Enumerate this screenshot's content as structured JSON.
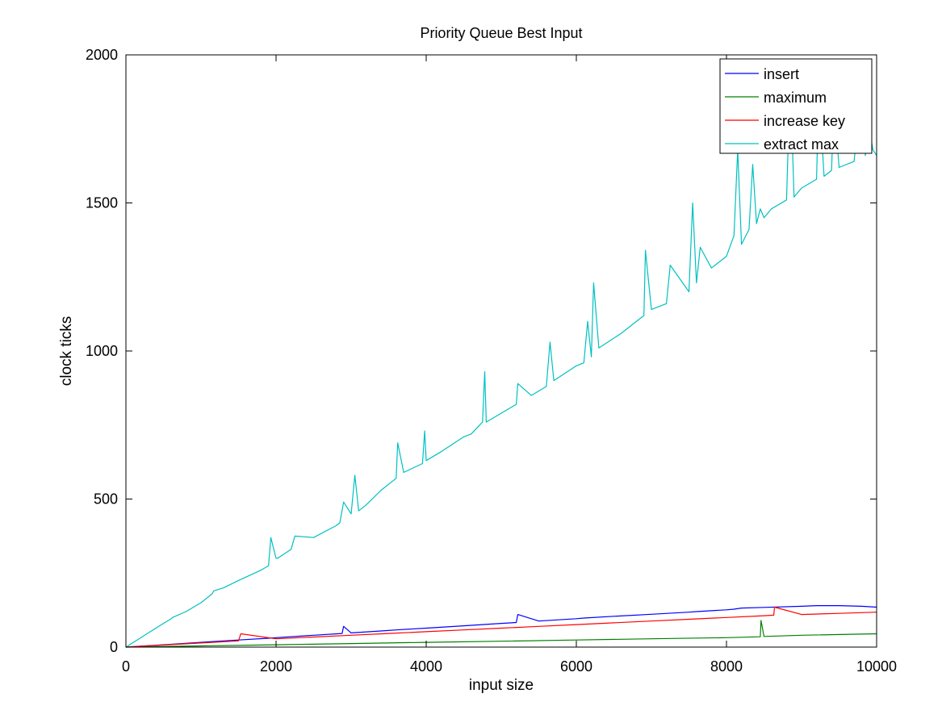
{
  "chart_data": {
    "type": "line",
    "title": "Priority Queue Best Input",
    "xlabel": "input size",
    "ylabel": "clock ticks",
    "xlim": [
      0,
      10000
    ],
    "ylim": [
      0,
      2000
    ],
    "xticks": [
      "0",
      "2000",
      "4000",
      "6000",
      "8000",
      "10000"
    ],
    "yticks": [
      "0",
      "500",
      "1000",
      "1500",
      "2000"
    ],
    "grid": false,
    "legend_position": "top-right",
    "series": [
      {
        "name": "insert",
        "color": "#0000ff",
        "x": [
          0,
          500,
          1000,
          1500,
          1900,
          2000,
          2500,
          2880,
          2900,
          3000,
          3500,
          3600,
          4000,
          4500,
          5000,
          5200,
          5220,
          5500,
          6000,
          6100,
          6500,
          7000,
          7500,
          7600,
          8000,
          8100,
          8200,
          8500,
          9000,
          9200,
          9500,
          9800,
          10000
        ],
        "y": [
          0,
          8,
          16,
          24,
          30,
          32,
          40,
          46,
          70,
          48,
          56,
          58,
          64,
          72,
          80,
          83,
          110,
          88,
          96,
          98,
          104,
          111,
          118,
          120,
          126,
          128,
          132,
          134,
          138,
          140,
          140,
          138,
          135
        ]
      },
      {
        "name": "maximum",
        "color": "#008000",
        "x": [
          0,
          1000,
          2000,
          3000,
          4000,
          5000,
          6000,
          7000,
          8000,
          8450,
          8460,
          8500,
          9000,
          10000
        ],
        "y": [
          0,
          4,
          8,
          12,
          16,
          20,
          24,
          28,
          32,
          35,
          90,
          36,
          40,
          45
        ]
      },
      {
        "name": "increase key",
        "color": "#ff0000",
        "x": [
          0,
          500,
          1000,
          1500,
          1530,
          2000,
          2500,
          3000,
          3500,
          4000,
          4500,
          5000,
          5500,
          6000,
          6500,
          7000,
          7500,
          8000,
          8500,
          8630,
          8640,
          9000,
          9500,
          10000
        ],
        "y": [
          0,
          7,
          14,
          21,
          45,
          28,
          34,
          40,
          46,
          52,
          58,
          64,
          70,
          76,
          82,
          88,
          94,
          100,
          106,
          108,
          135,
          110,
          114,
          118
        ]
      },
      {
        "name": "extract max",
        "color": "#00c0c0",
        "x": [
          0,
          250,
          500,
          600,
          620,
          800,
          900,
          1000,
          1150,
          1170,
          1300,
          1500,
          1800,
          1900,
          1930,
          2000,
          2020,
          2200,
          2250,
          2500,
          2800,
          2850,
          2900,
          3000,
          3050,
          3100,
          3200,
          3400,
          3600,
          3620,
          3700,
          3950,
          3980,
          4000,
          4200,
          4500,
          4600,
          4750,
          4780,
          4800,
          5000,
          5200,
          5220,
          5400,
          5600,
          5650,
          5700,
          6000,
          6100,
          6150,
          6200,
          6230,
          6300,
          6600,
          6900,
          6920,
          7000,
          7200,
          7250,
          7500,
          7550,
          7600,
          7650,
          7800,
          8000,
          8100,
          8150,
          8200,
          8300,
          8350,
          8400,
          8450,
          8500,
          8600,
          8800,
          8850,
          8900,
          9000,
          9200,
          9230,
          9300,
          9400,
          9430,
          9500,
          9700,
          9800,
          9850,
          9900,
          9950,
          10000
        ],
        "y": [
          0,
          40,
          80,
          95,
          100,
          120,
          135,
          150,
          180,
          190,
          200,
          225,
          260,
          275,
          370,
          300,
          300,
          330,
          375,
          370,
          410,
          420,
          490,
          450,
          580,
          460,
          480,
          530,
          570,
          690,
          590,
          620,
          730,
          630,
          660,
          710,
          720,
          760,
          930,
          760,
          790,
          820,
          890,
          850,
          880,
          1030,
          900,
          950,
          960,
          1100,
          980,
          1230,
          1010,
          1060,
          1120,
          1340,
          1140,
          1160,
          1290,
          1200,
          1500,
          1230,
          1350,
          1280,
          1320,
          1390,
          1680,
          1360,
          1410,
          1630,
          1430,
          1480,
          1450,
          1480,
          1510,
          1930,
          1520,
          1550,
          1580,
          1890,
          1590,
          1610,
          1850,
          1620,
          1640,
          1900,
          1660,
          1760,
          1680,
          1660
        ]
      }
    ]
  }
}
